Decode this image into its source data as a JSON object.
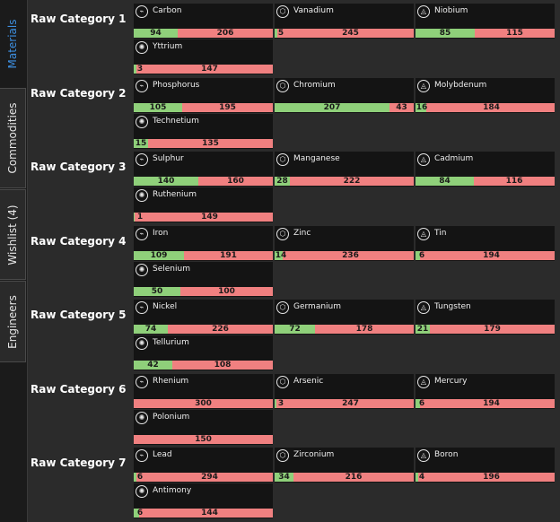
{
  "tabs": [
    {
      "label": "Materials",
      "active": true
    },
    {
      "label": "Commodities",
      "active": false
    },
    {
      "label": "Wishlist (4)",
      "active": false
    },
    {
      "label": "Engineers",
      "active": false
    }
  ],
  "colors": {
    "have": "#8fd07a",
    "need": "#f08080",
    "card": "#141414",
    "accent": "#3d8fe0"
  },
  "categories": [
    {
      "title": "Raw Category 1",
      "items": [
        {
          "name": "Carbon",
          "have": 94,
          "need": 206,
          "icon": "raw-grade-1-icon"
        },
        {
          "name": "Vanadium",
          "have": 5,
          "need": 245,
          "icon": "raw-grade-2-icon"
        },
        {
          "name": "Niobium",
          "have": 85,
          "need": 115,
          "icon": "raw-grade-3-icon"
        },
        {
          "name": "Yttrium",
          "have": 3,
          "need": 147,
          "icon": "raw-grade-4-icon"
        }
      ]
    },
    {
      "title": "Raw Category 2",
      "items": [
        {
          "name": "Phosphorus",
          "have": 105,
          "need": 195,
          "icon": "raw-grade-1-icon"
        },
        {
          "name": "Chromium",
          "have": 207,
          "need": 43,
          "icon": "raw-grade-2-icon"
        },
        {
          "name": "Molybdenum",
          "have": 16,
          "need": 184,
          "icon": "raw-grade-3-icon"
        },
        {
          "name": "Technetium",
          "have": 15,
          "need": 135,
          "icon": "raw-grade-4-icon"
        }
      ]
    },
    {
      "title": "Raw Category 3",
      "items": [
        {
          "name": "Sulphur",
          "have": 140,
          "need": 160,
          "icon": "raw-grade-1-icon"
        },
        {
          "name": "Manganese",
          "have": 28,
          "need": 222,
          "icon": "raw-grade-2-icon"
        },
        {
          "name": "Cadmium",
          "have": 84,
          "need": 116,
          "icon": "raw-grade-3-icon"
        },
        {
          "name": "Ruthenium",
          "have": 1,
          "need": 149,
          "icon": "raw-grade-4-icon"
        }
      ]
    },
    {
      "title": "Raw Category 4",
      "items": [
        {
          "name": "Iron",
          "have": 109,
          "need": 191,
          "icon": "raw-grade-1-icon"
        },
        {
          "name": "Zinc",
          "have": 14,
          "need": 236,
          "icon": "raw-grade-2-icon"
        },
        {
          "name": "Tin",
          "have": 6,
          "need": 194,
          "icon": "raw-grade-3-icon"
        },
        {
          "name": "Selenium",
          "have": 50,
          "need": 100,
          "icon": "raw-grade-4-icon"
        }
      ]
    },
    {
      "title": "Raw Category 5",
      "items": [
        {
          "name": "Nickel",
          "have": 74,
          "need": 226,
          "icon": "raw-grade-1-icon"
        },
        {
          "name": "Germanium",
          "have": 72,
          "need": 178,
          "icon": "raw-grade-2-icon"
        },
        {
          "name": "Tungsten",
          "have": 21,
          "need": 179,
          "icon": "raw-grade-3-icon"
        },
        {
          "name": "Tellurium",
          "have": 42,
          "need": 108,
          "icon": "raw-grade-4-icon"
        }
      ]
    },
    {
      "title": "Raw Category 6",
      "items": [
        {
          "name": "Rhenium",
          "have": 0,
          "need": 300,
          "icon": "raw-grade-1-icon"
        },
        {
          "name": "Arsenic",
          "have": 3,
          "need": 247,
          "icon": "raw-grade-2-icon"
        },
        {
          "name": "Mercury",
          "have": 6,
          "need": 194,
          "icon": "raw-grade-3-icon"
        },
        {
          "name": "Polonium",
          "have": 0,
          "need": 150,
          "icon": "raw-grade-4-icon"
        }
      ]
    },
    {
      "title": "Raw Category 7",
      "items": [
        {
          "name": "Lead",
          "have": 6,
          "need": 294,
          "icon": "raw-grade-1-icon"
        },
        {
          "name": "Zirconium",
          "have": 34,
          "need": 216,
          "icon": "raw-grade-2-icon"
        },
        {
          "name": "Boron",
          "have": 4,
          "need": 196,
          "icon": "raw-grade-3-icon"
        },
        {
          "name": "Antimony",
          "have": 6,
          "need": 144,
          "icon": "raw-grade-4-icon"
        }
      ]
    }
  ]
}
